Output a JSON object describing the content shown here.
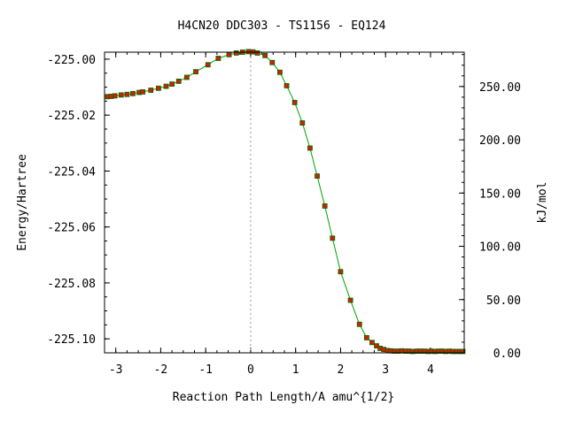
{
  "chart_data": {
    "type": "line",
    "title": "H4CN20   DDC303 - TS1156 - EQ124",
    "xlabel": "Reaction Path Length/A amu^{1/2}",
    "ylabel": "Energy/Hartree",
    "y2label": "kJ/mol",
    "xlim": [
      -3.25,
      4.75
    ],
    "ylim": [
      -225.105,
      -224.9975
    ],
    "y2lim": [
      0.0,
      282.24
    ],
    "x_ticks": [
      -3,
      -2,
      -1,
      0,
      1,
      2,
      3,
      4
    ],
    "x_tick_labels": [
      "-3",
      "-2",
      "-1",
      "0",
      "1",
      "2",
      "3",
      "4"
    ],
    "y_ticks": [
      -225.0,
      -225.02,
      -225.04,
      -225.06,
      -225.08,
      -225.1
    ],
    "y_tick_labels": [
      "-225.00",
      "-225.02",
      "-225.04",
      "-225.06",
      "-225.08",
      "-225.10"
    ],
    "y2_ticks": [
      0,
      50,
      100,
      150,
      200,
      250
    ],
    "y2_tick_labels": [
      "0.00",
      "50.00",
      "100.00",
      "150.00",
      "200.00",
      "250.00"
    ],
    "ts_marker_x": 0,
    "grid": false,
    "colors": {
      "line": "#00a000",
      "marker": "#cc2200",
      "marker_edge": "#006600",
      "ts_line": "#999999"
    },
    "series": [
      {
        "x": [
          -3.18,
          -3.1,
          -3.02,
          -2.88,
          -2.75,
          -2.62,
          -2.48,
          -2.4,
          -2.22,
          -2.05,
          -1.88,
          -1.75,
          -1.6,
          -1.42,
          -1.22,
          -0.95,
          -0.72,
          -0.48,
          -0.32,
          -0.18,
          -0.05,
          0.05,
          0.15,
          0.32,
          0.48,
          0.65,
          0.8,
          0.98,
          1.15,
          1.32,
          1.48,
          1.65,
          1.82,
          2.0,
          2.22,
          2.42,
          2.58,
          2.7,
          2.8,
          2.88,
          2.96,
          3.05,
          3.12,
          3.2,
          3.28,
          3.36,
          3.45,
          3.52,
          3.6,
          3.7,
          3.78,
          3.86,
          3.95,
          4.02,
          4.1,
          4.18,
          4.26,
          4.34,
          4.42,
          4.5,
          4.58,
          4.66,
          4.72
        ],
        "y": [
          -225.0134,
          -225.0133,
          -225.0131,
          -225.0128,
          -225.0126,
          -225.0123,
          -225.0119,
          -225.0117,
          -225.0111,
          -225.0104,
          -225.0097,
          -225.0089,
          -225.0079,
          -225.0065,
          -225.0045,
          -225.002,
          -224.9997,
          -224.9984,
          -224.9978,
          -224.9975,
          -224.9973,
          -224.9974,
          -224.9978,
          -224.9987,
          -225.0012,
          -225.0047,
          -225.0095,
          -225.0155,
          -225.0228,
          -225.0318,
          -225.0418,
          -225.0525,
          -225.064,
          -225.076,
          -225.0862,
          -225.0948,
          -225.0996,
          -225.1013,
          -225.1025,
          -225.1034,
          -225.1038,
          -225.1042,
          -225.1043,
          -225.1044,
          -225.1044,
          -225.1043,
          -225.1044,
          -225.1044,
          -225.1045,
          -225.1044,
          -225.1044,
          -225.1044,
          -225.1045,
          -225.1044,
          -225.1045,
          -225.1044,
          -225.1044,
          -225.1045,
          -225.1044,
          -225.1045,
          -225.1045,
          -225.1045,
          -225.1045
        ]
      }
    ]
  }
}
